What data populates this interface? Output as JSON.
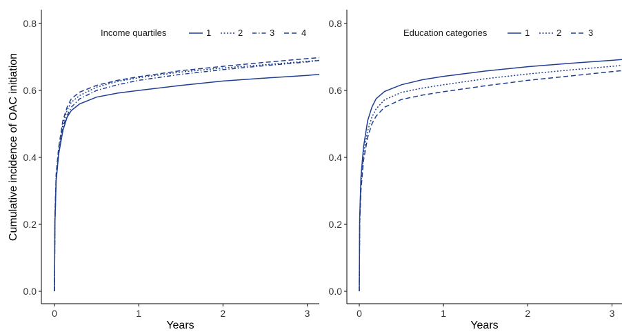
{
  "chart_data": [
    {
      "type": "line",
      "title": "",
      "xlabel": "Years",
      "ylabel": "Cumulative incidence of OAC initiation",
      "xlim": [
        0,
        3.15
      ],
      "ylim": [
        0,
        0.8
      ],
      "xticks": [
        "0",
        "1",
        "2",
        "3"
      ],
      "yticks": [
        "0.0",
        "0.2",
        "0.4",
        "0.6",
        "0.8"
      ],
      "grid": false,
      "legend": {
        "title": "Income quartiles",
        "position": "top"
      },
      "line_color": "#1f3f8f",
      "series": [
        {
          "name": "1",
          "dash": "solid",
          "x": [
            0,
            0.005,
            0.02,
            0.05,
            0.1,
            0.15,
            0.2,
            0.3,
            0.5,
            0.75,
            1,
            1.5,
            2,
            2.5,
            3,
            3.15
          ],
          "y": [
            0,
            0.2,
            0.33,
            0.41,
            0.48,
            0.52,
            0.54,
            0.56,
            0.58,
            0.592,
            0.6,
            0.615,
            0.628,
            0.637,
            0.645,
            0.648
          ]
        },
        {
          "name": "2",
          "dash": "dotted",
          "x": [
            0,
            0.005,
            0.02,
            0.05,
            0.1,
            0.15,
            0.2,
            0.3,
            0.5,
            0.75,
            1,
            1.5,
            2,
            2.5,
            3,
            3.15
          ],
          "y": [
            0,
            0.21,
            0.34,
            0.42,
            0.5,
            0.54,
            0.565,
            0.585,
            0.61,
            0.627,
            0.638,
            0.655,
            0.667,
            0.677,
            0.687,
            0.69
          ]
        },
        {
          "name": "3",
          "dash": "dashdot",
          "x": [
            0,
            0.005,
            0.02,
            0.05,
            0.1,
            0.15,
            0.2,
            0.3,
            0.5,
            0.75,
            1,
            1.5,
            2,
            2.5,
            3,
            3.15
          ],
          "y": [
            0,
            0.2,
            0.33,
            0.41,
            0.49,
            0.525,
            0.55,
            0.575,
            0.6,
            0.617,
            0.63,
            0.648,
            0.662,
            0.674,
            0.685,
            0.69
          ]
        },
        {
          "name": "4",
          "dash": "dashed",
          "x": [
            0,
            0.005,
            0.02,
            0.05,
            0.1,
            0.15,
            0.2,
            0.3,
            0.5,
            0.75,
            1,
            1.5,
            2,
            2.5,
            3,
            3.15
          ],
          "y": [
            0,
            0.22,
            0.35,
            0.43,
            0.51,
            0.55,
            0.575,
            0.595,
            0.615,
            0.63,
            0.641,
            0.659,
            0.672,
            0.684,
            0.695,
            0.698
          ]
        }
      ]
    },
    {
      "type": "line",
      "title": "",
      "xlabel": "Years",
      "ylabel": "",
      "xlim": [
        0,
        3.15
      ],
      "ylim": [
        0,
        0.8
      ],
      "xticks": [
        "0",
        "1",
        "2",
        "3"
      ],
      "yticks": [
        "0.0",
        "0.2",
        "0.4",
        "0.6",
        "0.8"
      ],
      "grid": false,
      "legend": {
        "title": "Education categories",
        "position": "top"
      },
      "line_color": "#1f3f8f",
      "series": [
        {
          "name": "1",
          "dash": "solid",
          "x": [
            0,
            0.005,
            0.02,
            0.05,
            0.1,
            0.15,
            0.2,
            0.3,
            0.5,
            0.75,
            1,
            1.5,
            2,
            2.5,
            3,
            3.15
          ],
          "y": [
            0,
            0.22,
            0.34,
            0.43,
            0.51,
            0.55,
            0.575,
            0.597,
            0.617,
            0.632,
            0.642,
            0.658,
            0.671,
            0.681,
            0.69,
            0.693
          ]
        },
        {
          "name": "2",
          "dash": "dotted",
          "x": [
            0,
            0.005,
            0.02,
            0.05,
            0.1,
            0.15,
            0.2,
            0.3,
            0.5,
            0.75,
            1,
            1.5,
            2,
            2.5,
            3,
            3.15
          ],
          "y": [
            0,
            0.21,
            0.32,
            0.41,
            0.48,
            0.52,
            0.545,
            0.572,
            0.594,
            0.607,
            0.617,
            0.635,
            0.649,
            0.661,
            0.672,
            0.675
          ]
        },
        {
          "name": "3",
          "dash": "dashed",
          "x": [
            0,
            0.005,
            0.02,
            0.05,
            0.1,
            0.15,
            0.2,
            0.3,
            0.5,
            0.75,
            1,
            1.5,
            2,
            2.5,
            3,
            3.15
          ],
          "y": [
            0,
            0.2,
            0.3,
            0.39,
            0.46,
            0.5,
            0.523,
            0.55,
            0.573,
            0.586,
            0.596,
            0.614,
            0.63,
            0.643,
            0.656,
            0.66
          ]
        }
      ]
    }
  ]
}
